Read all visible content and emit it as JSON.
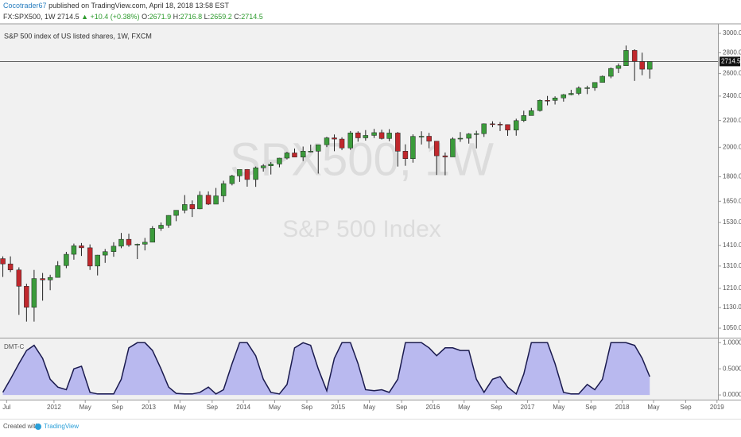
{
  "header": {
    "author": "Cocotrader67",
    "published": "published on TradingView.com, April 18, 2018 13:58 EST",
    "symbol": "FX:SPX500, 1W",
    "price": "2714.5",
    "change": "▲ +10.4 (+0.38%)",
    "ohlc": [
      {
        "label": "O:",
        "value": "2671.9"
      },
      {
        "label": "H:",
        "value": "2716.8"
      },
      {
        "label": "L:",
        "value": "2659.2"
      },
      {
        "label": "C:",
        "value": "2714.5"
      }
    ]
  },
  "chart_data": [
    {
      "type": "candlestick",
      "legend_text": "S&P 500 index of US listed shares, 1W, FXCM",
      "watermark_title": "SPX500, 1W",
      "watermark_subtitle": "S&P 500 Index",
      "up_color": "#3b9b3b",
      "down_color": "#c0282d",
      "log_scale": true,
      "grid": false,
      "last_price": 2714.5,
      "xlim": [
        2011.43,
        2019.01
      ],
      "ylim": [
        1015,
        3104
      ],
      "yticks": [
        {
          "value": 1050,
          "label": "1050.0"
        },
        {
          "value": 1130,
          "label": "1130.0"
        },
        {
          "value": 1210,
          "label": "1210.0"
        },
        {
          "value": 1310,
          "label": "1310.0"
        },
        {
          "value": 1410,
          "label": "1410.0"
        },
        {
          "value": 1530,
          "label": "1530.0"
        },
        {
          "value": 1650,
          "label": "1650.0"
        },
        {
          "value": 1800,
          "label": "1800.0"
        },
        {
          "value": 2000,
          "label": "2000.0"
        },
        {
          "value": 2200,
          "label": "2200.0"
        },
        {
          "value": 2400,
          "label": "2400.0"
        },
        {
          "value": 2600,
          "label": "2600.0"
        },
        {
          "value": 2800,
          "label": "2800.0"
        },
        {
          "value": 3000,
          "label": "3000.0"
        }
      ],
      "x": [
        2011.46,
        2011.54,
        2011.63,
        2011.71,
        2011.79,
        2011.88,
        2011.96,
        2012.04,
        2012.13,
        2012.21,
        2012.29,
        2012.38,
        2012.46,
        2012.54,
        2012.63,
        2012.71,
        2012.79,
        2012.88,
        2012.96,
        2013.04,
        2013.13,
        2013.21,
        2013.29,
        2013.38,
        2013.46,
        2013.54,
        2013.63,
        2013.71,
        2013.79,
        2013.88,
        2013.96,
        2014.04,
        2014.13,
        2014.21,
        2014.29,
        2014.38,
        2014.46,
        2014.54,
        2014.63,
        2014.71,
        2014.79,
        2014.88,
        2014.96,
        2015.04,
        2015.13,
        2015.21,
        2015.29,
        2015.38,
        2015.46,
        2015.54,
        2015.63,
        2015.71,
        2015.79,
        2015.88,
        2015.96,
        2016.04,
        2016.13,
        2016.21,
        2016.29,
        2016.38,
        2016.46,
        2016.54,
        2016.63,
        2016.71,
        2016.79,
        2016.88,
        2016.96,
        2017.04,
        2017.13,
        2017.21,
        2017.29,
        2017.38,
        2017.46,
        2017.54,
        2017.63,
        2017.71,
        2017.79,
        2017.88,
        2017.96,
        2018.04,
        2018.13,
        2018.21,
        2018.29
      ],
      "open": [
        1345,
        1320,
        1292,
        1219,
        1131,
        1253,
        1247,
        1258,
        1312,
        1366,
        1408,
        1398,
        1310,
        1362,
        1379,
        1406,
        1441,
        1412,
        1416,
        1426,
        1498,
        1515,
        1569,
        1598,
        1631,
        1606,
        1686,
        1633,
        1682,
        1757,
        1806,
        1848,
        1783,
        1859,
        1872,
        1884,
        1924,
        1960,
        1931,
        1972,
        1972,
        2018,
        2068,
        2059,
        1995,
        2105,
        2068,
        2086,
        2107,
        2063,
        2104,
        1972,
        1920,
        2079,
        2080,
        2044,
        1940,
        1932,
        2060,
        2065,
        2097,
        2099,
        2174,
        2171,
        2168,
        2126,
        2199,
        2239,
        2279,
        2364,
        2363,
        2384,
        2412,
        2423,
        2470,
        2472,
        2519,
        2575,
        2648,
        2674,
        2824,
        2714,
        2641
      ],
      "high": [
        1356,
        1356,
        1304,
        1230,
        1292,
        1278,
        1270,
        1333,
        1378,
        1419,
        1422,
        1415,
        1363,
        1392,
        1426,
        1474,
        1470,
        1419,
        1448,
        1510,
        1530,
        1570,
        1598,
        1687,
        1655,
        1710,
        1709,
        1730,
        1775,
        1813,
        1849,
        1850,
        1867,
        1884,
        1897,
        1926,
        1968,
        1991,
        2005,
        2019,
        2018,
        2076,
        2093,
        2072,
        2119,
        2117,
        2126,
        2135,
        2129,
        2133,
        2112,
        2021,
        2094,
        2117,
        2105,
        2038,
        1963,
        2072,
        2111,
        2103,
        2121,
        2177,
        2194,
        2188,
        2169,
        2214,
        2278,
        2301,
        2371,
        2401,
        2398,
        2418,
        2454,
        2484,
        2490,
        2520,
        2582,
        2657,
        2695,
        2873,
        2835,
        2801,
        2717
      ],
      "low": [
        1260,
        1282,
        1101,
        1075,
        1075,
        1158,
        1202,
        1258,
        1300,
        1340,
        1358,
        1292,
        1267,
        1325,
        1354,
        1396,
        1403,
        1343,
        1385,
        1426,
        1485,
        1501,
        1537,
        1581,
        1560,
        1604,
        1628,
        1633,
        1646,
        1746,
        1768,
        1738,
        1737,
        1834,
        1815,
        1862,
        1915,
        1930,
        1904,
        1964,
        1821,
        2001,
        1972,
        1980,
        1981,
        2040,
        2048,
        2067,
        2056,
        2044,
        1867,
        1872,
        1893,
        2020,
        1993,
        1812,
        1810,
        1932,
        2039,
        2026,
        1992,
        2075,
        2148,
        2119,
        2083,
        2084,
        2188,
        2245,
        2271,
        2322,
        2329,
        2353,
        2406,
        2408,
        2417,
        2446,
        2520,
        2557,
        2605,
        2683,
        2533,
        2585,
        2554
      ],
      "close": [
        1320,
        1292,
        1219,
        1131,
        1253,
        1247,
        1258,
        1312,
        1366,
        1408,
        1398,
        1310,
        1362,
        1379,
        1406,
        1441,
        1412,
        1416,
        1426,
        1498,
        1515,
        1569,
        1598,
        1631,
        1606,
        1686,
        1633,
        1682,
        1757,
        1806,
        1848,
        1783,
        1859,
        1872,
        1884,
        1924,
        1960,
        1931,
        1972,
        1972,
        2018,
        2068,
        2059,
        1995,
        2105,
        2068,
        2086,
        2107,
        2063,
        2104,
        1972,
        1920,
        2079,
        2080,
        2044,
        1940,
        1932,
        2060,
        2065,
        2097,
        2099,
        2174,
        2171,
        2168,
        2126,
        2199,
        2239,
        2279,
        2364,
        2363,
        2384,
        2412,
        2423,
        2470,
        2472,
        2519,
        2575,
        2648,
        2674,
        2824,
        2714,
        2641,
        2714
      ]
    },
    {
      "type": "area",
      "name": "DMT-C",
      "color": "#b9b9ef",
      "line_color": "#1a1a4e",
      "xlim": [
        2011.43,
        2019.01
      ],
      "ylim": [
        -0.09,
        1.08
      ],
      "yticks": [
        {
          "value": 0,
          "label": "0.0000"
        },
        {
          "value": 0.5,
          "label": "0.5000"
        },
        {
          "value": 1,
          "label": "1.0000"
        }
      ],
      "xticks": [
        {
          "value": 2011.5,
          "label": "Jul"
        },
        2012,
        {
          "value": 2012.33,
          "label": "May"
        },
        {
          "value": 2012.67,
          "label": "Sep"
        },
        2013,
        {
          "value": 2013.33,
          "label": "May"
        },
        {
          "value": 2013.67,
          "label": "Sep"
        },
        2014,
        {
          "value": 2014.33,
          "label": "May"
        },
        {
          "value": 2014.67,
          "label": "Sep"
        },
        2015,
        {
          "value": 2015.33,
          "label": "May"
        },
        {
          "value": 2015.67,
          "label": "Sep"
        },
        2016,
        {
          "value": 2016.33,
          "label": "May"
        },
        {
          "value": 2016.67,
          "label": "Sep"
        },
        2017,
        {
          "value": 2017.33,
          "label": "May"
        },
        {
          "value": 2017.67,
          "label": "Sep"
        },
        2018,
        {
          "value": 2018.33,
          "label": "May"
        },
        {
          "value": 2018.67,
          "label": "Sep"
        },
        2019
      ],
      "x": [
        2011.46,
        2011.54,
        2011.63,
        2011.71,
        2011.79,
        2011.88,
        2011.96,
        2012.04,
        2012.13,
        2012.21,
        2012.29,
        2012.38,
        2012.46,
        2012.54,
        2012.63,
        2012.71,
        2012.79,
        2012.88,
        2012.96,
        2013.04,
        2013.13,
        2013.21,
        2013.29,
        2013.38,
        2013.46,
        2013.54,
        2013.63,
        2013.71,
        2013.79,
        2013.88,
        2013.96,
        2014.04,
        2014.13,
        2014.21,
        2014.29,
        2014.38,
        2014.46,
        2014.54,
        2014.63,
        2014.71,
        2014.79,
        2014.88,
        2014.96,
        2015.04,
        2015.13,
        2015.21,
        2015.29,
        2015.38,
        2015.46,
        2015.54,
        2015.63,
        2015.71,
        2015.79,
        2015.88,
        2015.96,
        2016.04,
        2016.13,
        2016.21,
        2016.29,
        2016.38,
        2016.46,
        2016.54,
        2016.63,
        2016.71,
        2016.79,
        2016.88,
        2016.96,
        2017.04,
        2017.13,
        2017.21,
        2017.29,
        2017.38,
        2017.46,
        2017.54,
        2017.63,
        2017.71,
        2017.79,
        2017.88,
        2017.96,
        2018.04,
        2018.13,
        2018.21,
        2018.29
      ],
      "values": [
        0.05,
        0.3,
        0.6,
        0.85,
        0.95,
        0.7,
        0.3,
        0.15,
        0.1,
        0.5,
        0.55,
        0.05,
        0.02,
        0.02,
        0.02,
        0.3,
        0.9,
        1.0,
        1.0,
        0.85,
        0.5,
        0.15,
        0.03,
        0.02,
        0.02,
        0.05,
        0.15,
        0.02,
        0.1,
        0.6,
        1.0,
        1.0,
        0.75,
        0.3,
        0.05,
        0.02,
        0.2,
        0.9,
        1.0,
        0.95,
        0.5,
        0.08,
        0.7,
        1.0,
        1.0,
        0.6,
        0.1,
        0.08,
        0.1,
        0.05,
        0.3,
        1.0,
        1.0,
        1.0,
        0.9,
        0.75,
        0.9,
        0.9,
        0.85,
        0.85,
        0.3,
        0.05,
        0.3,
        0.35,
        0.15,
        0.02,
        0.4,
        1.0,
        1.0,
        1.0,
        0.6,
        0.05,
        0.02,
        0.02,
        0.2,
        0.1,
        0.3,
        1.0,
        1.0,
        1.0,
        0.95,
        0.7,
        0.35
      ]
    }
  ],
  "footer": {
    "created": "Created with",
    "brand": "TradingView"
  }
}
